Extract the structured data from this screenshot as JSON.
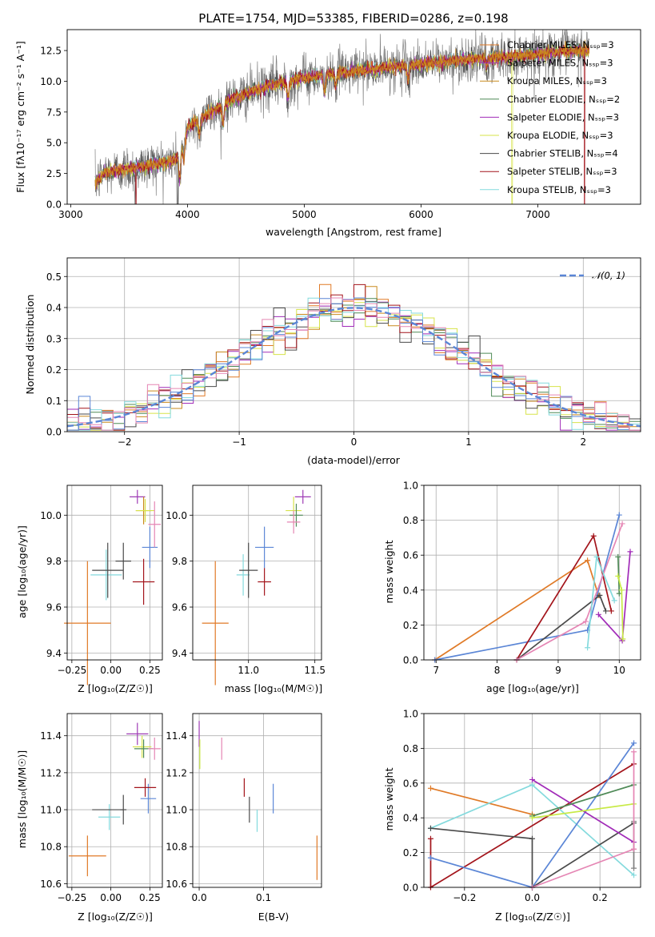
{
  "colors": {
    "chabrier_miles": "#e07a27",
    "salpeter_miles": "#9e3bb5",
    "kroupa_miles": "#c98a1e",
    "chabrier_elodie": "#4f8a57",
    "salpeter_elodie": "#a12bb8",
    "kroupa_elodie": "#d7e34a",
    "chabrier_stelib": "#4a4a4a",
    "salpeter_stelib": "#a3141b",
    "kroupa_stelib": "#84dadd",
    "blue": "#5b86d6",
    "pink": "#e586b4",
    "lime": "#c8ea46",
    "green": "#4f8a57",
    "gray": "#808080",
    "grid": "#b0b0b0"
  },
  "chart_data": [
    {
      "type": "line",
      "id": "spectrum",
      "title": "PLATE=1754, MJD=53385, FIBERID=0286, z=0.198",
      "xlabel": "wavelength [Angstrom, rest frame]",
      "ylabel": "Flux [fλ10⁻¹⁷ erg cm⁻² s⁻¹ A⁻¹]",
      "xlim": [
        2970,
        7880
      ],
      "ylim": [
        0,
        14.2
      ],
      "xticks": [
        "3000",
        "4000",
        "5000",
        "6000",
        "7000"
      ],
      "yticks": [
        "0.0",
        "2.5",
        "5.0",
        "7.5",
        "10.0",
        "12.5"
      ],
      "legend_position": "top-right",
      "legend": [
        "Chabrier MILES, Nₛₛₚ=3",
        "Salpeter MILES, Nₛₛₚ=3",
        "Kroupa MILES, Nₛₛₚ=3",
        "Chabrier ELODIE, Nₛₛₚ=2",
        "Salpeter ELODIE, Nₛₛₚ=3",
        "Kroupa ELODIE, Nₛₛₚ=3",
        "Chabrier STELIB, Nₛₛₚ=4",
        "Salpeter STELIB, Nₛₛₚ=3",
        "Kroupa STELIB, Nₛₛₚ=3"
      ],
      "continuum": {
        "x": [
          3200,
          3300,
          3500,
          3700,
          3900,
          4000,
          4200,
          4400,
          4600,
          4800,
          5000,
          5200,
          5500,
          5800,
          6000,
          6300,
          6600,
          7000,
          7300,
          7500,
          7880
        ],
        "y": [
          1.6,
          2.6,
          2.9,
          3.2,
          3.6,
          6.3,
          7.5,
          8.6,
          9.3,
          9.9,
          10.3,
          10.6,
          10.9,
          11.2,
          11.4,
          11.7,
          11.9,
          12.2,
          12.5,
          12.6,
          12.7
        ]
      },
      "spectrum_start": 3210,
      "spectrum_end": 7440
    },
    {
      "type": "histogram",
      "id": "residuals",
      "xlabel": "(data-model)/error",
      "ylabel": "Normed distribution",
      "xlim": [
        -2.5,
        2.5
      ],
      "ylim": [
        0,
        0.56
      ],
      "xticks": [
        "−2",
        "−1",
        "0",
        "1",
        "2"
      ],
      "yticks": [
        "0.0",
        "0.1",
        "0.2",
        "0.3",
        "0.4",
        "0.5"
      ],
      "bin_width": 0.1,
      "legend": [
        "𝒩(0, 1)"
      ],
      "legend_position": "top-right",
      "gaussian": {
        "mean": 0,
        "sigma": 1
      }
    },
    {
      "type": "scatter",
      "id": "age_vs_Z",
      "xlabel": "Z [log₁₀(Z/Z☉)]",
      "ylabel": "age  [log₁₀(age/yr)]",
      "xlim": [
        -0.28,
        0.33
      ],
      "ylim": [
        9.37,
        10.13
      ],
      "xticks": [
        "−0.25",
        "0.00",
        "0.25"
      ],
      "yticks": [
        "9.4",
        "9.6",
        "9.8",
        "10.0"
      ],
      "points": [
        {
          "x": -0.15,
          "xerr": 0.15,
          "y": 9.53,
          "yerr": 0.27,
          "c": "chabrier_miles"
        },
        {
          "x": 0.17,
          "xerr": 0.05,
          "y": 10.08,
          "yerr": 0.03,
          "c": "salpeter_miles"
        },
        {
          "x": 0.21,
          "xerr": 0.05,
          "y": 10.02,
          "yerr": 0.06,
          "c": "kroupa_miles"
        },
        {
          "x": 0.22,
          "xerr": 0.06,
          "y": 10.02,
          "yerr": 0.05,
          "c": "kroupa_elodie"
        },
        {
          "x": 0.25,
          "xerr": 0.05,
          "y": 9.86,
          "yerr": 0.09,
          "c": "blue"
        },
        {
          "x": 0.28,
          "xerr": 0.04,
          "y": 9.96,
          "yerr": 0.1,
          "c": "pink"
        },
        {
          "x": -0.03,
          "xerr": 0.1,
          "y": 9.74,
          "yerr": 0.11,
          "c": "kroupa_stelib"
        },
        {
          "x": -0.02,
          "xerr": 0.1,
          "y": 9.76,
          "yerr": 0.12,
          "c": "chabrier_stelib"
        },
        {
          "x": 0.08,
          "xerr": 0.05,
          "y": 9.8,
          "yerr": 0.08,
          "c": "chabrier_stelib"
        },
        {
          "x": 0.21,
          "xerr": 0.07,
          "y": 9.71,
          "yerr": 0.1,
          "c": "salpeter_stelib"
        }
      ]
    },
    {
      "type": "scatter",
      "id": "age_vs_mass",
      "xlabel": "mass [log₁₀(M/M☉)]",
      "ylabel": "",
      "xlim": [
        10.58,
        11.55
      ],
      "ylim": [
        9.37,
        10.13
      ],
      "xticks": [
        "11.0",
        "11.5"
      ],
      "yticks": [
        "9.4",
        "9.6",
        "9.8",
        "10.0"
      ],
      "points": [
        {
          "x": 10.75,
          "xerr": 0.1,
          "y": 9.53,
          "yerr": 0.27,
          "c": "chabrier_miles"
        },
        {
          "x": 11.41,
          "xerr": 0.06,
          "y": 10.08,
          "yerr": 0.03,
          "c": "salpeter_miles"
        },
        {
          "x": 11.34,
          "xerr": 0.06,
          "y": 10.02,
          "yerr": 0.06,
          "c": "kroupa_elodie"
        },
        {
          "x": 11.36,
          "xerr": 0.05,
          "y": 10.0,
          "yerr": 0.05,
          "c": "chabrier_elodie"
        },
        {
          "x": 11.12,
          "xerr": 0.07,
          "y": 9.86,
          "yerr": 0.09,
          "c": "blue"
        },
        {
          "x": 11.34,
          "xerr": 0.05,
          "y": 9.97,
          "yerr": 0.05,
          "c": "pink"
        },
        {
          "x": 10.96,
          "xerr": 0.05,
          "y": 9.74,
          "yerr": 0.09,
          "c": "kroupa_stelib"
        },
        {
          "x": 11.0,
          "xerr": 0.07,
          "y": 9.76,
          "yerr": 0.12,
          "c": "chabrier_stelib"
        },
        {
          "x": 11.12,
          "xerr": 0.05,
          "y": 9.71,
          "yerr": 0.06,
          "c": "salpeter_stelib"
        }
      ]
    },
    {
      "type": "line",
      "id": "weight_vs_age",
      "xlabel": "age  [log₁₀(age/yr)]",
      "ylabel": "mass weight",
      "xlim": [
        6.8,
        10.35
      ],
      "ylim": [
        0,
        1.0
      ],
      "xticks": [
        "7",
        "8",
        "9",
        "10"
      ],
      "yticks": [
        "0.0",
        "0.2",
        "0.4",
        "0.6",
        "0.8",
        "1.0"
      ],
      "series": [
        {
          "c": "chabrier_miles",
          "x": [
            6.98,
            9.48,
            9.66
          ],
          "y": [
            0.0,
            0.57,
            0.37
          ]
        },
        {
          "c": "blue",
          "x": [
            6.98,
            9.48,
            10.0
          ],
          "y": [
            0.0,
            0.17,
            0.83
          ]
        },
        {
          "c": "salpeter_stelib",
          "x": [
            8.32,
            9.58,
            9.87
          ],
          "y": [
            0.0,
            0.71,
            0.28
          ]
        },
        {
          "c": "chabrier_stelib",
          "x": [
            8.32,
            9.68,
            9.78
          ],
          "y": [
            0.0,
            0.37,
            0.28
          ]
        },
        {
          "c": "pink",
          "x": [
            8.32,
            9.45,
            10.05
          ],
          "y": [
            0.0,
            0.22,
            0.78
          ]
        },
        {
          "c": "kroupa_stelib",
          "x": [
            9.48,
            9.63,
            9.92
          ],
          "y": [
            0.07,
            0.59,
            0.34
          ]
        },
        {
          "c": "salpeter_elodie",
          "x": [
            9.66,
            10.05,
            10.18
          ],
          "y": [
            0.26,
            0.11,
            0.62
          ]
        },
        {
          "c": "chabrier_elodie",
          "x": [
            9.98,
            10.0
          ],
          "y": [
            0.59,
            0.38
          ]
        },
        {
          "c": "lime",
          "x": [
            9.98,
            10.04,
            10.06
          ],
          "y": [
            0.48,
            0.4,
            0.12
          ]
        }
      ]
    },
    {
      "type": "scatter",
      "id": "mass_vs_Z",
      "xlabel": "Z [log₁₀(Z/Z☉)]",
      "ylabel": "mass [log₁₀(M/M☉)]",
      "xlim": [
        -0.28,
        0.33
      ],
      "ylim": [
        10.58,
        11.52
      ],
      "xticks": [
        "−0.25",
        "0.00",
        "0.25"
      ],
      "yticks": [
        "10.6",
        "10.8",
        "11.0",
        "11.2",
        "11.4"
      ],
      "points": [
        {
          "x": -0.15,
          "xerr": 0.12,
          "y": 10.75,
          "yerr": 0.11,
          "c": "chabrier_miles"
        },
        {
          "x": 0.17,
          "xerr": 0.07,
          "y": 11.41,
          "yerr": 0.06,
          "c": "salpeter_miles"
        },
        {
          "x": 0.2,
          "xerr": 0.06,
          "y": 11.34,
          "yerr": 0.06,
          "c": "kroupa_elodie"
        },
        {
          "x": 0.21,
          "xerr": 0.06,
          "y": 11.33,
          "yerr": 0.05,
          "c": "chabrier_elodie"
        },
        {
          "x": 0.28,
          "xerr": 0.04,
          "y": 11.33,
          "yerr": 0.06,
          "c": "pink"
        },
        {
          "x": 0.24,
          "xerr": 0.05,
          "y": 11.06,
          "yerr": 0.08,
          "c": "blue"
        },
        {
          "x": 0.22,
          "xerr": 0.07,
          "y": 11.12,
          "yerr": 0.05,
          "c": "salpeter_stelib"
        },
        {
          "x": -0.01,
          "xerr": 0.07,
          "y": 10.96,
          "yerr": 0.07,
          "c": "kroupa_stelib"
        },
        {
          "x": 0.08,
          "xerr": 0.02,
          "y": 11.0,
          "yerr": 0.08,
          "c": "chabrier_stelib"
        },
        {
          "x": -0.02,
          "xerr": 0.1,
          "y": 11.0,
          "yerr": 0.0,
          "c": "chabrier_stelib"
        }
      ]
    },
    {
      "type": "scatter",
      "id": "mass_vs_ebv",
      "xlabel": "E(B-V)",
      "ylabel": "",
      "xlim": [
        -0.01,
        0.19
      ],
      "ylim": [
        10.58,
        11.52
      ],
      "xticks": [
        "0.0",
        "0.1"
      ],
      "yticks": [
        "10.6",
        "10.8",
        "11.0",
        "11.2",
        "11.4"
      ],
      "points": [
        {
          "x": 0.0,
          "xerr": 0.0,
          "y": 11.41,
          "yerr": 0.07,
          "c": "salpeter_miles"
        },
        {
          "x": 0.001,
          "xerr": 0.0,
          "y": 11.3,
          "yerr": 0.08,
          "c": "lime"
        },
        {
          "x": 0.035,
          "xerr": 0.0,
          "y": 11.33,
          "yerr": 0.06,
          "c": "pink"
        },
        {
          "x": 0.07,
          "xerr": 0.0,
          "y": 11.12,
          "yerr": 0.05,
          "c": "salpeter_stelib"
        },
        {
          "x": 0.078,
          "xerr": 0.0,
          "y": 11.0,
          "yerr": 0.07,
          "c": "chabrier_stelib"
        },
        {
          "x": 0.09,
          "xerr": 0.0,
          "y": 10.94,
          "yerr": 0.06,
          "c": "kroupa_stelib"
        },
        {
          "x": 0.115,
          "xerr": 0.0,
          "y": 11.06,
          "yerr": 0.08,
          "c": "blue"
        },
        {
          "x": 0.183,
          "xerr": 0.0,
          "y": 10.74,
          "yerr": 0.12,
          "c": "chabrier_miles"
        }
      ]
    },
    {
      "type": "line",
      "id": "weight_vs_Z",
      "xlabel": "Z [log₁₀(Z/Z☉)]",
      "ylabel": "mass weight",
      "xlim": [
        -0.32,
        0.32
      ],
      "ylim": [
        0,
        1.0
      ],
      "xticks": [
        "−0.2",
        "0.0",
        "0.2"
      ],
      "yticks": [
        "0.0",
        "0.2",
        "0.4",
        "0.6",
        "0.8",
        "1.0"
      ],
      "series": [
        {
          "c": "chabrier_miles",
          "x": [
            -0.3,
            0.0
          ],
          "y": [
            0.57,
            0.42
          ]
        },
        {
          "c": "salpeter_stelib",
          "x": [
            -0.3,
            -0.3,
            0.3,
            0.3
          ],
          "y": [
            0.28,
            0.0,
            0.71,
            0.71
          ]
        },
        {
          "c": "kroupa_stelib",
          "x": [
            -0.3,
            0.0,
            0.3
          ],
          "y": [
            0.34,
            0.59,
            0.07
          ]
        },
        {
          "c": "blue",
          "x": [
            -0.3,
            0.0,
            0.3
          ],
          "y": [
            0.17,
            0.0,
            0.83
          ]
        },
        {
          "c": "chabrier_stelib",
          "x": [
            -0.3,
            0.0,
            0.0,
            0.3
          ],
          "y": [
            0.34,
            0.28,
            0.0,
            0.37
          ]
        },
        {
          "c": "salpeter_elodie",
          "x": [
            0.0,
            0.3
          ],
          "y": [
            0.62,
            0.26
          ]
        },
        {
          "c": "chabrier_elodie",
          "x": [
            0.0,
            0.3
          ],
          "y": [
            0.41,
            0.59
          ]
        },
        {
          "c": "lime",
          "x": [
            0.0,
            0.3
          ],
          "y": [
            0.4,
            0.48
          ]
        },
        {
          "c": "pink",
          "x": [
            0.0,
            0.3
          ],
          "y": [
            0.0,
            0.22
          ]
        },
        {
          "c": "gray",
          "x": [
            0.3,
            0.3
          ],
          "y": [
            0.11,
            0.38
          ]
        },
        {
          "c": "pink",
          "x": [
            0.3,
            0.3
          ],
          "y": [
            0.22,
            0.78
          ]
        }
      ]
    }
  ]
}
